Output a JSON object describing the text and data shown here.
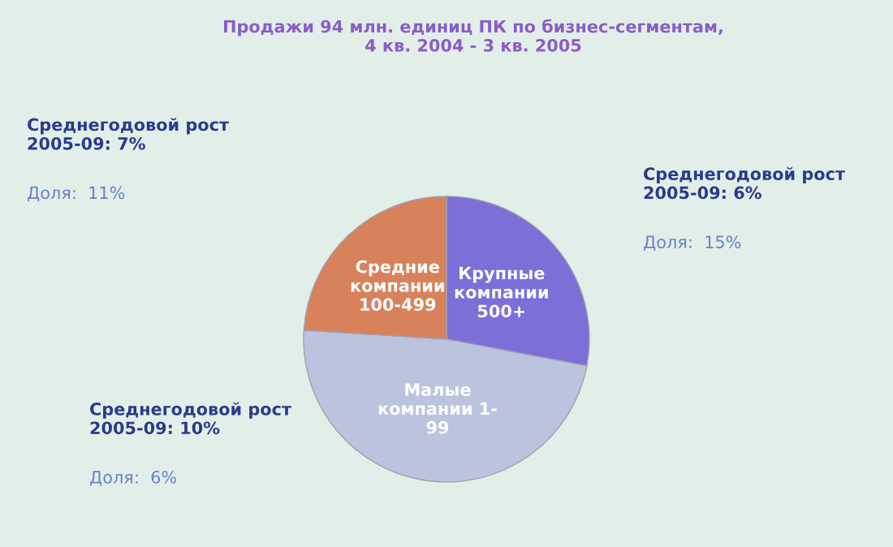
{
  "chart_data": {
    "type": "pie",
    "title": "Продажи 94 млн. единиц ПК по бизнес-сегментам,\n4 кв. 2004 - 3 кв. 2005",
    "categories": [
      "Крупные\nкомпании\n500+",
      "Малые\nкомпании 1-\n99",
      "Средние\nкомпании\n100-499"
    ],
    "values": [
      28,
      48,
      24
    ],
    "colors": [
      "#7c6fd8",
      "#bcc3de",
      "#d8825c"
    ],
    "annotations": [
      "Среднегодовой рост\n2005-09: 6%",
      "Доля:  15%",
      "Среднегодовой рост\n2005-09: 10%",
      "Доля:  6%",
      "Среднегодовой рост\n2005-09: 7%",
      "Доля:  11%"
    ]
  }
}
